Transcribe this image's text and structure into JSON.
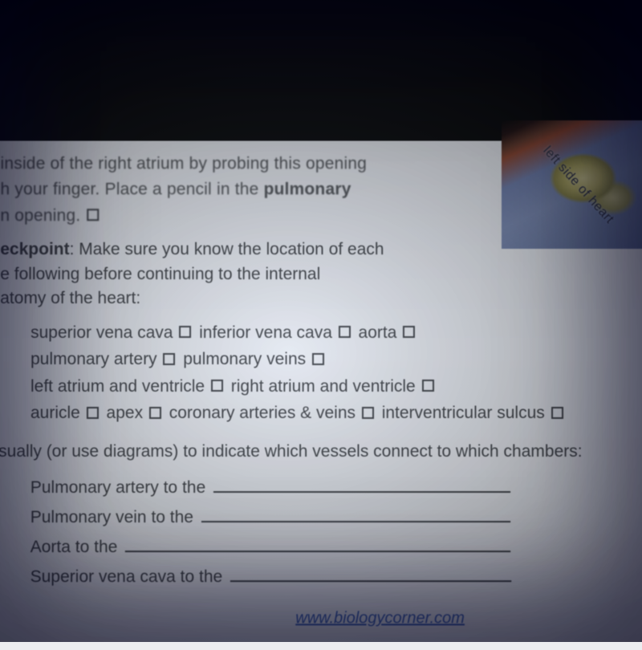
{
  "cutoff": {
    "line1": "inside of the right atrium by probing this opening",
    "line2a": "h your finger. Place a pencil in the ",
    "line2b": "pulmonary",
    "line3": "n opening. "
  },
  "checkpoint": {
    "label": "eckpoint",
    "text1": ": Make sure you know the location of each",
    "text2": "e following before continuing to the internal",
    "text3": "atomy of the heart:"
  },
  "checklist": {
    "r1a": "superior vena cava ",
    "r1b": " inferior vena cava ",
    "r1c": " aorta ",
    "r2a": "pulmonary artery ",
    "r2b": " pulmonary veins ",
    "r3a": "left atrium and ventricle ",
    "r3b": " right atrium and ventricle ",
    "r4a": "auricle ",
    "r4b": " apex ",
    "r4c": " coronary arteries & veins ",
    "r4d": " interventricular sulcus "
  },
  "question": "Visually (or use diagrams) to indicate which vessels connect to which chambers:",
  "fills": {
    "f1": "Pulmonary artery to the ",
    "f2": "Pulmonary vein to the ",
    "f3": "Aorta to the ",
    "f4": "Superior vena cava to the "
  },
  "blank_widths": {
    "f1": "370px",
    "f2": "385px",
    "f3": "480px",
    "f4": "350px"
  },
  "photo_label": "left side of heart",
  "footer_url": "www.biologycorner.com",
  "colors": {
    "page_bg": "#eceef1",
    "text": "#3a3c3e",
    "link": "#3b5fb5"
  }
}
